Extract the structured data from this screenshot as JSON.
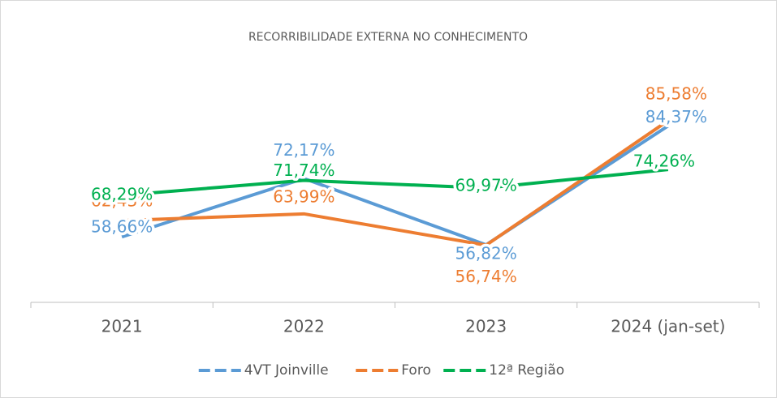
{
  "chart_data": {
    "type": "line",
    "title": "RECORRIBILIDADE EXTERNA NO CONHECIMENTO",
    "categories": [
      "2021",
      "2022",
      "2023",
      "2024 (jan-set)"
    ],
    "series": [
      {
        "name": "4VT Joinville",
        "color": "#5b9bd5",
        "values": [
          58.66,
          72.17,
          56.82,
          84.37
        ],
        "value_labels": [
          "58,66%",
          "72,17%",
          "56,82%",
          "84,37%"
        ]
      },
      {
        "name": "Foro",
        "color": "#ed7d31",
        "values": [
          62.43,
          63.99,
          56.74,
          85.58
        ],
        "value_labels": [
          "62,43%",
          "63,99%",
          "56,74%",
          "85,58%"
        ]
      },
      {
        "name": "12ª Região",
        "color": "#00b050",
        "values": [
          68.29,
          71.74,
          69.97,
          74.26
        ],
        "value_labels": [
          "68,29%",
          "71,74%",
          "69,97%",
          "74,26%"
        ]
      }
    ],
    "ylim": [
      43.5,
      100
    ]
  }
}
